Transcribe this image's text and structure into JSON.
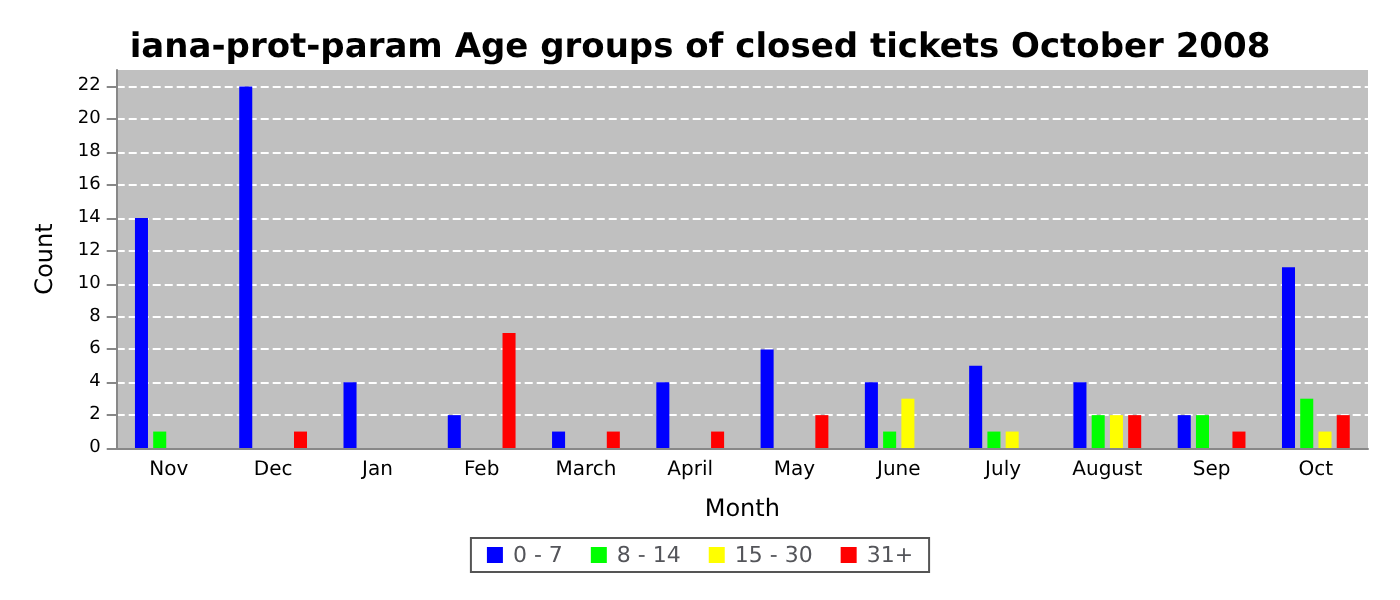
{
  "chart_data": {
    "type": "bar",
    "title": "iana-prot-param Age groups of closed tickets October 2008",
    "xlabel": "Month",
    "ylabel": "Count",
    "categories": [
      "Nov",
      "Dec",
      "Jan",
      "Feb",
      "March",
      "April",
      "May",
      "June",
      "July",
      "August",
      "Sep",
      "Oct"
    ],
    "series": [
      {
        "name": "0 - 7",
        "color": "#0000ff",
        "values": [
          14,
          22,
          4,
          2,
          1,
          4,
          6,
          4,
          5,
          4,
          2,
          11
        ]
      },
      {
        "name": "8 - 14",
        "color": "#00ff00",
        "values": [
          1,
          0,
          0,
          0,
          0,
          0,
          0,
          1,
          1,
          2,
          2,
          3
        ]
      },
      {
        "name": "15 - 30",
        "color": "#ffff00",
        "values": [
          0,
          0,
          0,
          0,
          0,
          0,
          0,
          3,
          1,
          2,
          0,
          1
        ]
      },
      {
        "name": "31+",
        "color": "#ff0000",
        "values": [
          0,
          1,
          0,
          7,
          1,
          1,
          2,
          0,
          0,
          2,
          1,
          2
        ]
      }
    ],
    "ylim": [
      0,
      23
    ],
    "yticks": [
      0,
      2,
      4,
      6,
      8,
      10,
      12,
      14,
      16,
      18,
      20,
      22
    ],
    "grid": "y",
    "legend": "bottom"
  }
}
